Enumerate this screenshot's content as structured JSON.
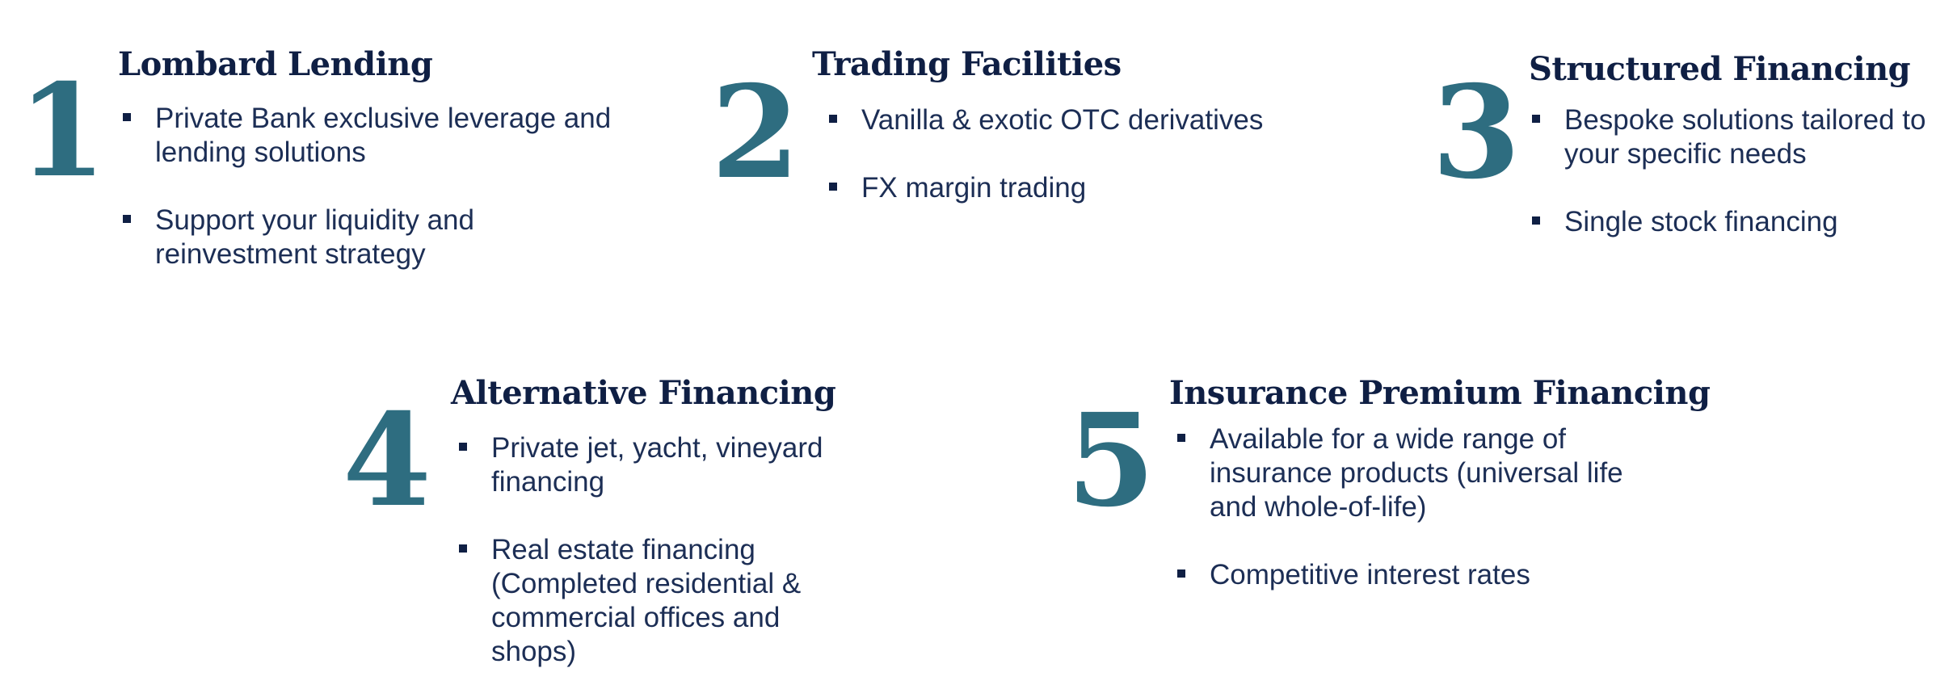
{
  "items": [
    {
      "number": "1",
      "title": "Lombard Lending",
      "bullets": [
        "Private Bank exclusive leverage and lending solutions",
        "Support your liquidity and reinvestment strategy"
      ]
    },
    {
      "number": "2",
      "title": "Trading Facilities",
      "bullets": [
        "Vanilla & exotic OTC derivatives",
        "FX margin trading"
      ]
    },
    {
      "number": "3",
      "title": "Structured Financing",
      "bullets": [
        "Bespoke solutions tailored to your specific needs",
        "Single stock financing"
      ]
    },
    {
      "number": "4",
      "title": "Alternative Financing",
      "bullets": [
        "Private jet, yacht, vineyard financing",
        "Real estate financing (Completed residential & commercial offices and shops)"
      ]
    },
    {
      "number": "5",
      "title": "Insurance Premium Financing",
      "bullets": [
        "Available for a wide range of insurance products (universal life and whole-of-life)",
        "Competitive interest rates"
      ]
    }
  ],
  "colors": {
    "number": "#2e6d80",
    "title": "#0f1f44",
    "text": "#1c2e55",
    "background": "#ffffff"
  },
  "bullet_icon": "square-bullet-icon"
}
